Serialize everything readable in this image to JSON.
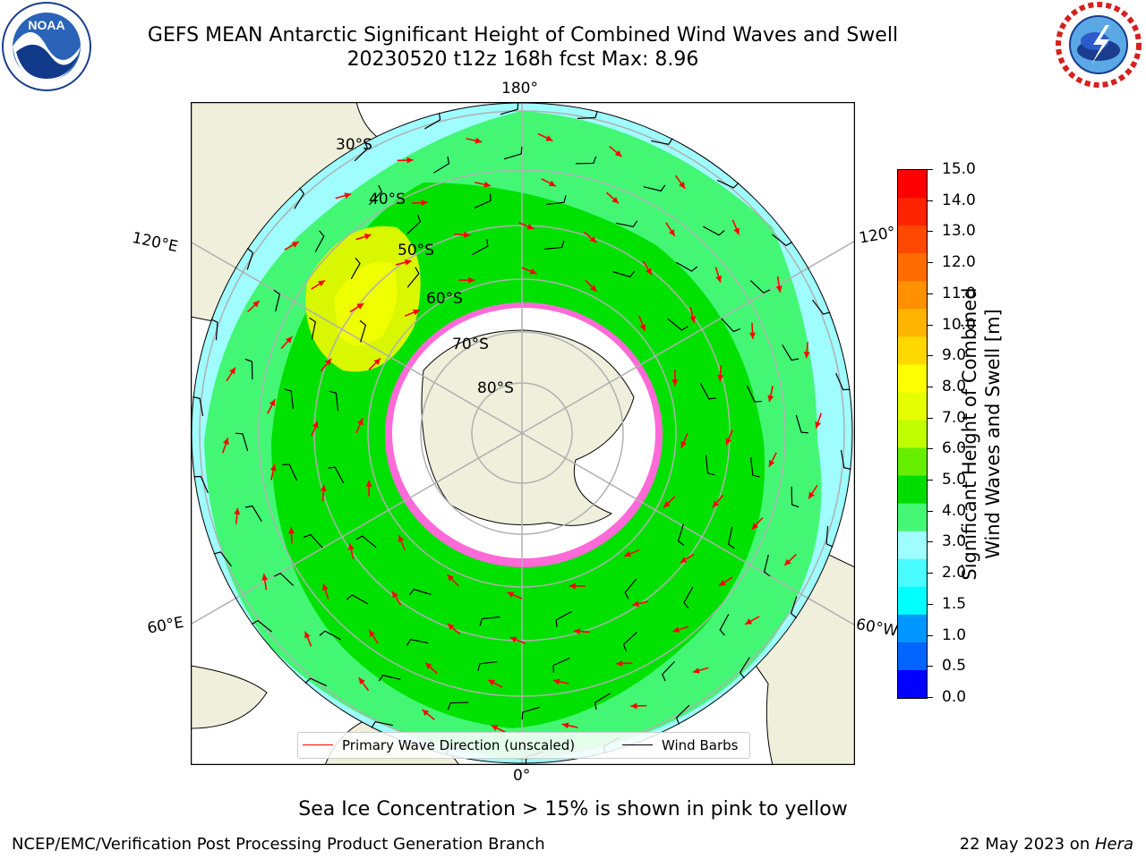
{
  "title": {
    "line1": "GEFS MEAN Antarctic Significant Height of Combined Wind Waves and Swell",
    "line2": "20230520 t12z 168h fcst   Max: 8.96"
  },
  "map": {
    "projection": "south-polar-stereographic",
    "longitude_labels": {
      "top": "180°",
      "upper_left": "120°E",
      "upper_right": "120°",
      "lower_left": "60°E",
      "lower_right": "60°W",
      "bottom": "0°"
    },
    "latitude_labels": [
      "30°S",
      "40°S",
      "50°S",
      "60°S",
      "70°S",
      "80°S"
    ],
    "colors": {
      "land": "#efefdc",
      "ocean_low": "#9ffcff",
      "ocean_mid": "#43f775",
      "ocean_high": "#00e100",
      "ocean_peak": "#d8f700",
      "ice": "#ff69d8",
      "antarctica": "#ffffff",
      "grid": "#b0b0b0",
      "arrow": "#ff0000",
      "barb": "#000000"
    }
  },
  "colorbar": {
    "label_line1": "Significant Height of Combined",
    "label_line2": "Wind Waves and Swell [m]",
    "ticks": [
      "15.0",
      "14.0",
      "13.0",
      "12.0",
      "11.0",
      "10.0",
      "9.0",
      "8.0",
      "7.0",
      "6.0",
      "5.0",
      "4.0",
      "3.0",
      "2.0",
      "1.5",
      "1.0",
      "0.5",
      "0.0"
    ],
    "colors_top_to_bottom": [
      "#ff0000",
      "#ff2300",
      "#ff4800",
      "#ff6c00",
      "#ff9000",
      "#ffb400",
      "#ffd800",
      "#ffff00",
      "#e6ff00",
      "#bfff00",
      "#66ee00",
      "#00dd00",
      "#44f775",
      "#9ffcff",
      "#48fcff",
      "#00ffff",
      "#0096ff",
      "#0064ff",
      "#0000ff"
    ]
  },
  "legend": {
    "primary_wave": "Primary Wave Direction (unscaled)",
    "wind_barbs": "Wind Barbs"
  },
  "footnote": "Sea Ice Concentration > 15% is shown in pink to yellow",
  "credits": {
    "left": "NCEP/EMC/Verification Post Processing Product Generation Branch",
    "right_date": "22 May 2023 on ",
    "right_host": "Hera"
  },
  "logos": {
    "noaa": "NOAA",
    "nws": "NATIONAL WEATHER SERVICE"
  }
}
